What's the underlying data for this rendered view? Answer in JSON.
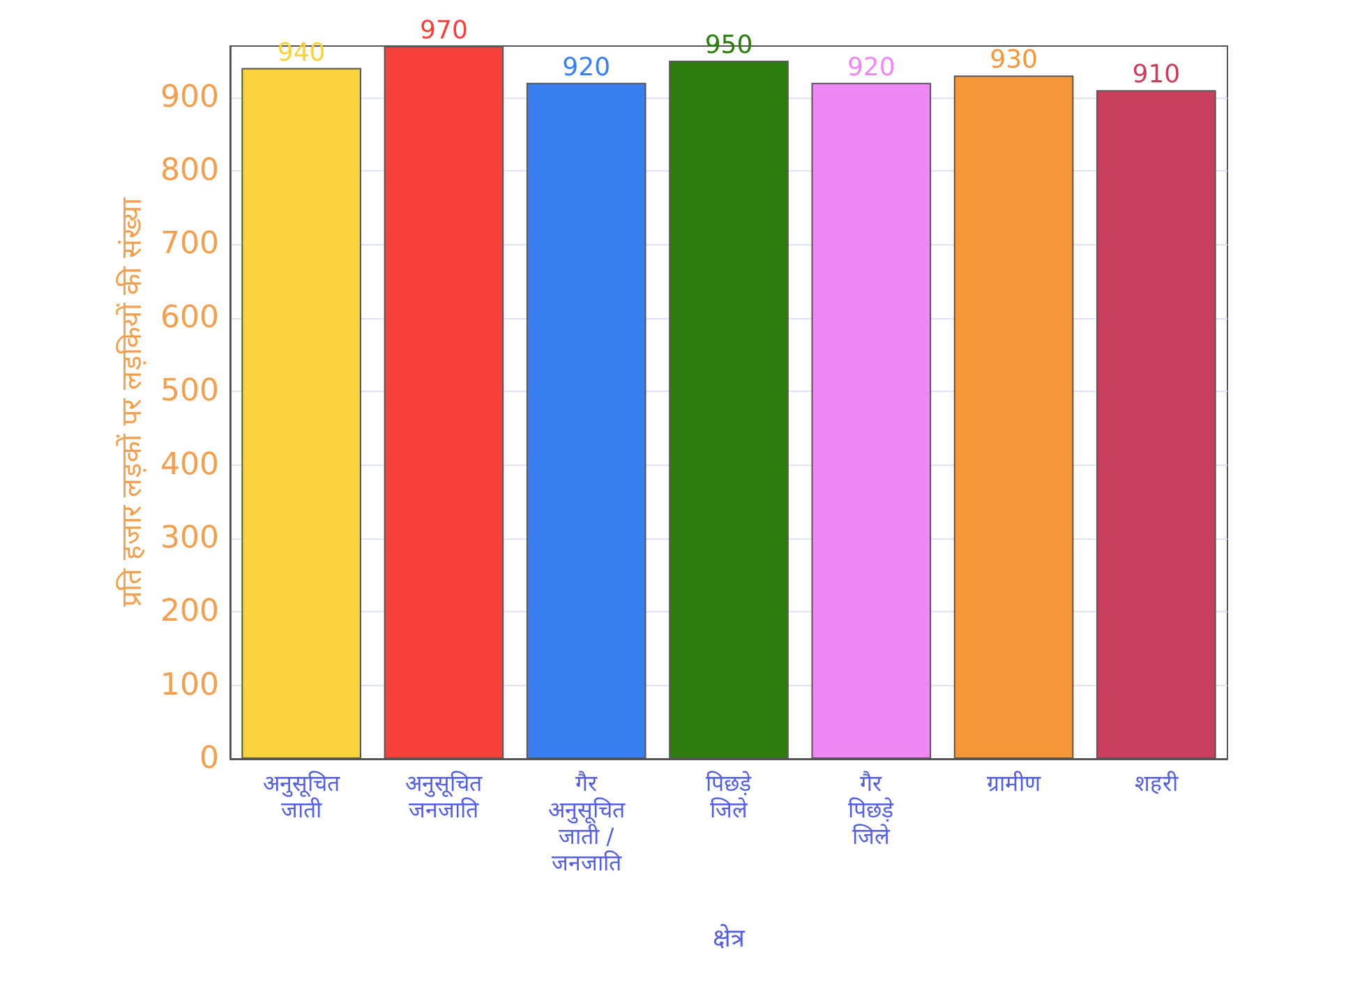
{
  "chart_data": {
    "type": "bar",
    "xlabel": "क्षेत्र",
    "ylabel": "प्रति हजार लड़कों पर लड़कियों की संख्या",
    "categories": [
      "अनुसूचित जाती",
      "अनुसूचित जनजाति",
      "गैर अनुसूचित जाती / जनजाति",
      "पिछड़े जिले",
      "गैर पिछड़े जिले",
      "ग्रामीण",
      "शहरी"
    ],
    "values": [
      940,
      970,
      920,
      950,
      920,
      930,
      910
    ],
    "colors": [
      "#f9d23c",
      "#f5413a",
      "#3a7ff0",
      "#2e7d0f",
      "#ee88f5",
      "#f7963a",
      "#c8405e"
    ],
    "ylim": [
      0,
      970
    ],
    "yticks": [
      0,
      100,
      200,
      300,
      400,
      500,
      600,
      700,
      800,
      900
    ],
    "grid": "y",
    "data_labels": true
  }
}
